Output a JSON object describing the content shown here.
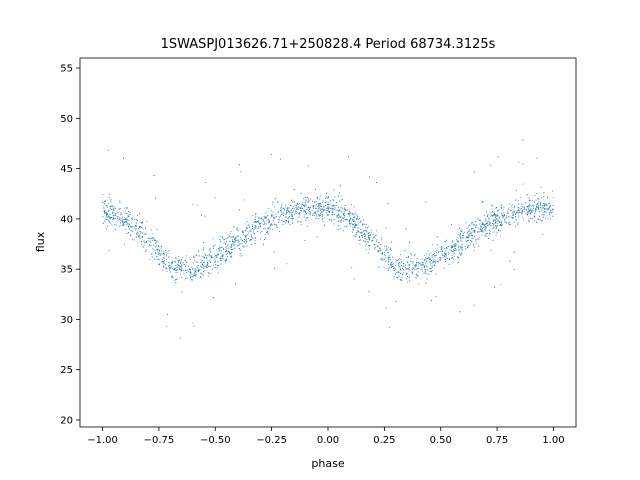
{
  "chart_data": {
    "type": "scatter",
    "title": "1SWASPJ013626.71+250828.4 Period 68734.3125s",
    "xlabel": "phase",
    "ylabel": "flux",
    "xlim": [
      -1.1,
      1.1
    ],
    "ylim": [
      19.3,
      56.0
    ],
    "xticks": [
      -1.0,
      -0.75,
      -0.5,
      -0.25,
      0.0,
      0.25,
      0.5,
      0.75,
      1.0
    ],
    "xtick_labels": [
      "−1.00",
      "−0.75",
      "−0.50",
      "−0.25",
      "0.00",
      "0.25",
      "0.50",
      "0.75",
      "1.00"
    ],
    "yticks": [
      20,
      25,
      30,
      35,
      40,
      45,
      50,
      55
    ],
    "ytick_labels": [
      "20",
      "25",
      "30",
      "35",
      "40",
      "45",
      "50",
      "55"
    ],
    "grid": false,
    "marker_color": "#1f77b4",
    "curve_profile": {
      "phase": [
        0.0,
        0.1,
        0.2,
        0.3,
        0.4,
        0.5,
        0.6,
        0.7,
        0.8,
        0.9,
        1.0
      ],
      "flux": [
        41.0,
        40.0,
        38.0,
        35.3,
        35.0,
        36.3,
        37.8,
        39.3,
        40.5,
        41.0,
        41.0
      ]
    },
    "series": [
      {
        "values_note_free": true,
        "x": [
          -0.98,
          -0.95,
          -0.92,
          -0.88,
          -0.85,
          -0.82,
          -0.78,
          -0.75,
          -0.72,
          -0.68,
          -0.65,
          -0.62,
          -0.58,
          -0.55,
          -0.52,
          -0.48,
          -0.45,
          -0.42,
          -0.38,
          -0.35,
          -0.32,
          -0.28,
          -0.25,
          -0.22,
          -0.18,
          -0.15,
          -0.12,
          -0.08,
          -0.05,
          -0.02,
          0.02,
          0.05,
          0.08,
          0.12,
          0.15,
          0.18,
          0.22,
          0.25,
          0.28,
          0.32,
          0.35,
          0.38,
          0.42,
          0.45,
          0.48,
          0.52,
          0.55,
          0.58,
          0.62,
          0.65,
          0.68,
          0.72,
          0.75,
          0.78,
          0.82,
          0.85,
          0.88,
          0.92,
          0.95,
          0.98
        ],
        "y": [
          40.2,
          40.0,
          39.6,
          39.0,
          38.2,
          37.2,
          36.2,
          35.5,
          35.1,
          35.0,
          35.0,
          35.3,
          35.7,
          36.2,
          36.7,
          37.2,
          37.7,
          38.2,
          38.7,
          39.2,
          39.7,
          40.1,
          40.4,
          40.7,
          40.9,
          41.0,
          41.0,
          41.0,
          41.0,
          40.8,
          40.6,
          40.3,
          39.9,
          39.3,
          38.6,
          37.7,
          36.8,
          36.0,
          35.5,
          35.1,
          35.0,
          35.1,
          35.5,
          36.0,
          36.4,
          36.8,
          37.2,
          37.7,
          38.2,
          38.7,
          39.2,
          39.6,
          40.0,
          40.3,
          40.6,
          40.8,
          40.9,
          41.0,
          41.0,
          41.0
        ]
      }
    ]
  }
}
